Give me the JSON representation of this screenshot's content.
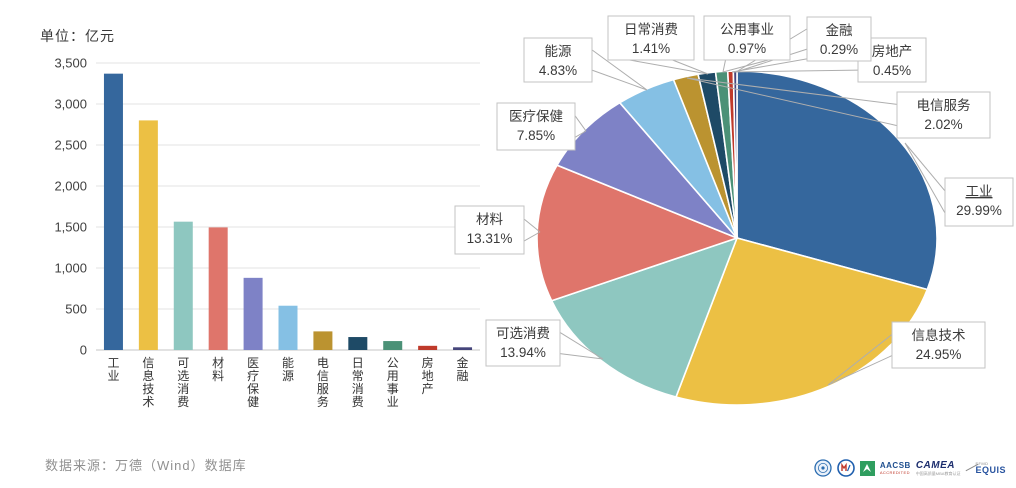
{
  "page_title": "行业市值与占比图表",
  "footer": {
    "source_label": "数据来源：万德（Wind）数据库",
    "logos": {
      "seal1": "university-seal",
      "seal2": "management-school-seal",
      "aacsb": "AACSB",
      "aacsb_sub": "ACCREDITED",
      "camea": "CAMEA",
      "camea_sub": "中国高质量MBA教育认证",
      "efmd": "EFMD",
      "equis": "EQUIS"
    }
  },
  "chart_data": [
    {
      "type": "bar",
      "title": "单位：亿元",
      "ylabel": "亿元",
      "xlabel": "",
      "categories": [
        "工业",
        "信息技术",
        "可选消费",
        "材料",
        "医疗保健",
        "能源",
        "电信服务",
        "日常消费",
        "公用事业",
        "房地产",
        "金融"
      ],
      "values": [
        3370,
        2800,
        1565,
        1495,
        880,
        540,
        227,
        158,
        109,
        51,
        33
      ],
      "colors": [
        "#35679d",
        "#ecc044",
        "#8ec7c0",
        "#df756b",
        "#7e82c6",
        "#85c0e4",
        "#bb9330",
        "#1e4a66",
        "#4b9177",
        "#bf3a2b",
        "#45457b"
      ],
      "ylim": [
        0,
        3500
      ],
      "ytick_interval": 500,
      "ytick_labels": [
        "0",
        "500",
        "1,000",
        "1,500",
        "2,000",
        "2,500",
        "3,000",
        "3,500"
      ],
      "grid": true,
      "legend": false
    },
    {
      "type": "pie",
      "title": "",
      "labels": [
        "工业",
        "信息技术",
        "可选消费",
        "材料",
        "医疗保健",
        "能源",
        "电信服务",
        "日常消费",
        "公用事业",
        "房地产",
        "金融"
      ],
      "values": [
        29.99,
        24.95,
        13.94,
        13.31,
        7.85,
        4.83,
        2.02,
        1.41,
        0.97,
        0.45,
        0.29
      ],
      "pct_labels": [
        "29.99%",
        "24.95%",
        "13.94%",
        "13.31%",
        "7.85%",
        "4.83%",
        "2.02%",
        "1.41%",
        "0.97%",
        "0.45%",
        "0.29%"
      ],
      "colors": [
        "#35679d",
        "#ecc044",
        "#8ec7c0",
        "#df756b",
        "#7e82c6",
        "#85c0e4",
        "#bb9330",
        "#1e4a66",
        "#4b9177",
        "#bf3a2b",
        "#45457b"
      ],
      "start_angle_deg": 0,
      "direction": "clockwise",
      "legend": false,
      "label_style": "callout-boxes"
    }
  ]
}
